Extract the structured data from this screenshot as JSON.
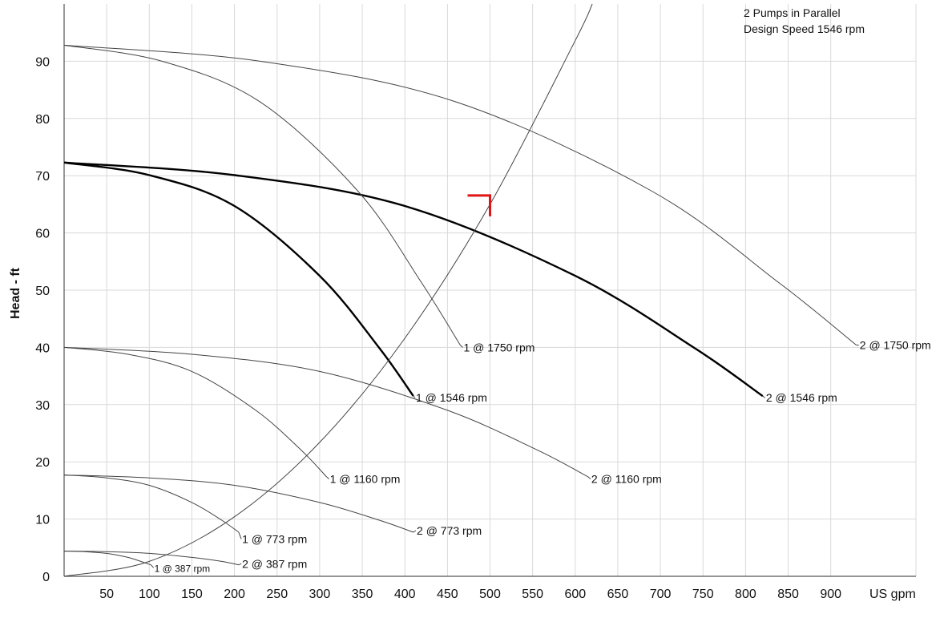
{
  "chart_data": {
    "type": "line",
    "title": "",
    "notes": [
      "2 Pumps in Parallel",
      "Design Speed 1546 rpm"
    ],
    "xlabel": "US gpm",
    "ylabel": "Head - ft",
    "xlim": [
      0,
      1000
    ],
    "ylim": [
      0,
      100
    ],
    "x_ticks": [
      50,
      100,
      150,
      200,
      250,
      300,
      350,
      400,
      450,
      500,
      550,
      600,
      650,
      700,
      750,
      800,
      850,
      900
    ],
    "x_tick_labels": [
      "50",
      "100",
      "150",
      "200",
      "250",
      "300",
      "350",
      "400",
      "450",
      "500",
      "550",
      "600",
      "650",
      "700",
      "750",
      "800",
      "850",
      "900"
    ],
    "y_ticks": [
      0,
      10,
      20,
      30,
      40,
      50,
      60,
      70,
      80,
      90
    ],
    "y_tick_labels": [
      "0",
      "10",
      "20",
      "30",
      "40",
      "50",
      "60",
      "70",
      "80",
      "90"
    ],
    "grid": true,
    "series": [
      {
        "name": "1 @ 387 rpm",
        "bold": false,
        "x": [
          0,
          25,
          50,
          75,
          90,
          102
        ],
        "y": [
          4.4,
          4.3,
          4.0,
          3.3,
          2.6,
          2.0
        ],
        "label_anchor": [
          105,
          1.5
        ],
        "small": true
      },
      {
        "name": "2 @ 387 rpm",
        "bold": false,
        "x": [
          0,
          50,
          100,
          150,
          185,
          205
        ],
        "y": [
          4.4,
          4.3,
          4.0,
          3.3,
          2.6,
          2.0
        ],
        "label_anchor": [
          208,
          2.2
        ]
      },
      {
        "name": "1 @ 773 rpm",
        "bold": false,
        "x": [
          0,
          50,
          100,
          150,
          185,
          205
        ],
        "y": [
          17.7,
          17.2,
          15.9,
          12.9,
          9.8,
          7.7
        ],
        "label_anchor": [
          208,
          6.5
        ]
      },
      {
        "name": "2 @ 773 rpm",
        "bold": false,
        "x": [
          0,
          100,
          200,
          300,
          370,
          410
        ],
        "y": [
          17.7,
          17.2,
          15.9,
          12.9,
          9.8,
          7.7
        ],
        "label_anchor": [
          413,
          8.0
        ]
      },
      {
        "name": "1 @ 1160 rpm",
        "bold": false,
        "x": [
          0,
          75,
          150,
          225,
          278,
          308
        ],
        "y": [
          40.0,
          38.8,
          35.8,
          29.0,
          22.1,
          17.4
        ],
        "label_anchor": [
          311,
          17.0
        ]
      },
      {
        "name": "2 @ 1160 rpm",
        "bold": false,
        "x": [
          0,
          150,
          300,
          450,
          555,
          615
        ],
        "y": [
          40.0,
          38.8,
          35.8,
          29.0,
          22.1,
          17.4
        ],
        "label_anchor": [
          618,
          17.0
        ]
      },
      {
        "name": "1 @ 1546 rpm",
        "bold": true,
        "x": [
          0,
          100,
          200,
          300,
          370,
          410
        ],
        "y": [
          72.3,
          70.1,
          64.7,
          52.5,
          39.9,
          31.5
        ],
        "label_anchor": [
          412,
          31.2
        ]
      },
      {
        "name": "2 @ 1546 rpm",
        "bold": true,
        "x": [
          0,
          200,
          400,
          600,
          740,
          820
        ],
        "y": [
          72.3,
          70.1,
          64.7,
          52.5,
          39.9,
          31.5
        ],
        "label_anchor": [
          823,
          31.2
        ]
      },
      {
        "name": "1 @ 1750 rpm",
        "bold": false,
        "x": [
          0,
          115,
          230,
          345,
          420,
          465
        ],
        "y": [
          92.8,
          90.0,
          82.9,
          67.3,
          51.2,
          40.4
        ],
        "label_anchor": [
          468,
          40.0
        ]
      },
      {
        "name": "2 @ 1750 rpm",
        "bold": false,
        "x": [
          0,
          230,
          460,
          690,
          840,
          930
        ],
        "y": [
          92.8,
          90.0,
          82.9,
          67.3,
          51.2,
          40.4
        ],
        "label_anchor": [
          933,
          40.4
        ]
      }
    ],
    "system_curve": {
      "x": [
        0,
        100,
        200,
        300,
        400,
        500,
        600,
        620
      ],
      "y": [
        0,
        2.6,
        10.4,
        23.4,
        41.6,
        65.0,
        93.6,
        100
      ]
    },
    "operating_point": {
      "x": 500,
      "y": 65
    },
    "colors": {
      "curve": "#444444",
      "design_curve": "#000000",
      "marker": "#e01515",
      "grid": "#d9d9d9"
    }
  }
}
